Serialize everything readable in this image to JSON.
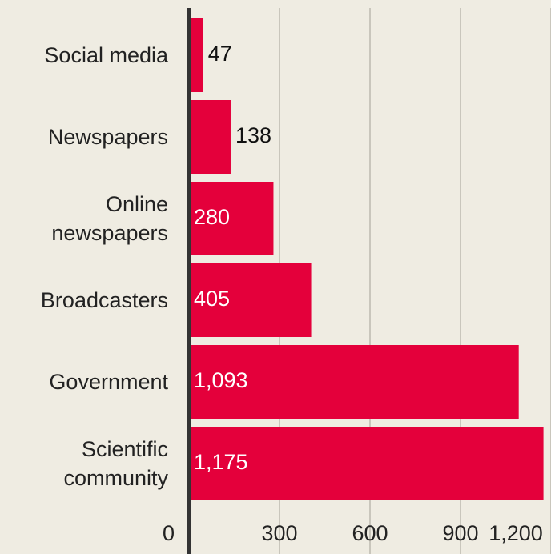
{
  "chart_data": {
    "type": "hbar",
    "categories": [
      "Social media",
      "Newspapers",
      "Online newspapers",
      "Broadcasters",
      "Government",
      "Scientific community"
    ],
    "values": [
      47,
      138,
      280,
      405,
      1093,
      1175
    ],
    "value_labels": [
      "47",
      "138",
      "280",
      "405",
      "1,093",
      "1,175"
    ],
    "color": "#e4003b",
    "xlim": [
      0,
      1200
    ],
    "xticks": [
      0,
      300,
      600,
      900,
      {
        "value": 1200,
        "label": "1,200"
      }
    ],
    "grid": true
  }
}
